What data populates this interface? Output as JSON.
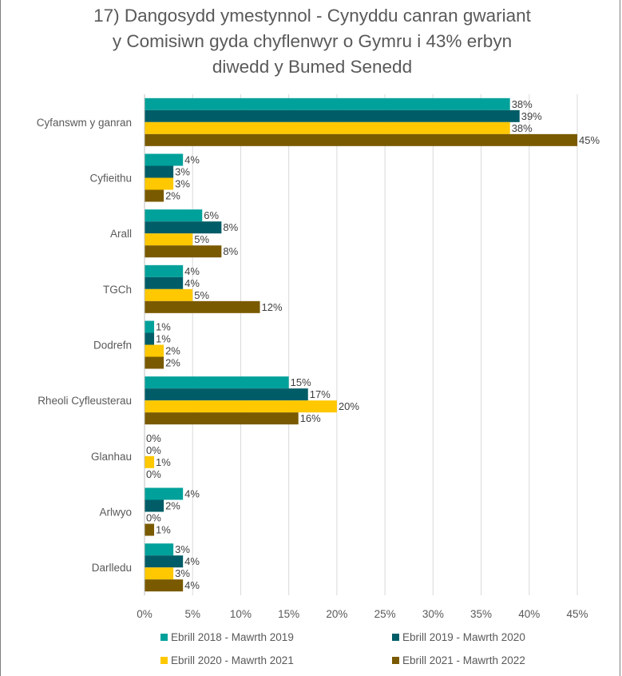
{
  "chart_data": {
    "type": "bar",
    "orientation": "horizontal",
    "title_lines": [
      "17) Dangosydd ymestynnol - Cynyddu canran gwariant",
      "y Comisiwn gyda chyflenwyr o Gymru i 43% erbyn",
      "diwedd y Bumed Senedd"
    ],
    "categories": [
      "Cyfanswm y ganran",
      "Cyfieithu",
      "Arall",
      "TGCh",
      "Dodrefn",
      "Rheoli Cyfleusterau",
      "Glanhau",
      "Arlwyo",
      "Darlledu"
    ],
    "series": [
      {
        "name": "Ebrill 2018 - Mawrth 2019",
        "color": "#00a19a",
        "values": [
          38,
          4,
          6,
          4,
          1,
          15,
          0,
          4,
          3
        ]
      },
      {
        "name": "Ebrill 2019 - Mawrth 2020",
        "color": "#005d67",
        "values": [
          39,
          3,
          8,
          4,
          1,
          17,
          0,
          2,
          4
        ]
      },
      {
        "name": "Ebrill 2020 - Mawrth 2021",
        "color": "#ffc800",
        "values": [
          38,
          3,
          5,
          5,
          2,
          20,
          1,
          0,
          3
        ]
      },
      {
        "name": "Ebrill 2021 - Mawrth 2022",
        "color": "#7a5a00",
        "values": [
          45,
          2,
          8,
          12,
          2,
          16,
          0,
          1,
          4
        ]
      }
    ],
    "x_ticks": [
      "0%",
      "5%",
      "10%",
      "15%",
      "20%",
      "25%",
      "30%",
      "35%",
      "40%",
      "45%"
    ],
    "xlim": [
      0,
      45
    ],
    "value_suffix": "%",
    "grid": true,
    "legend_position": "bottom"
  }
}
